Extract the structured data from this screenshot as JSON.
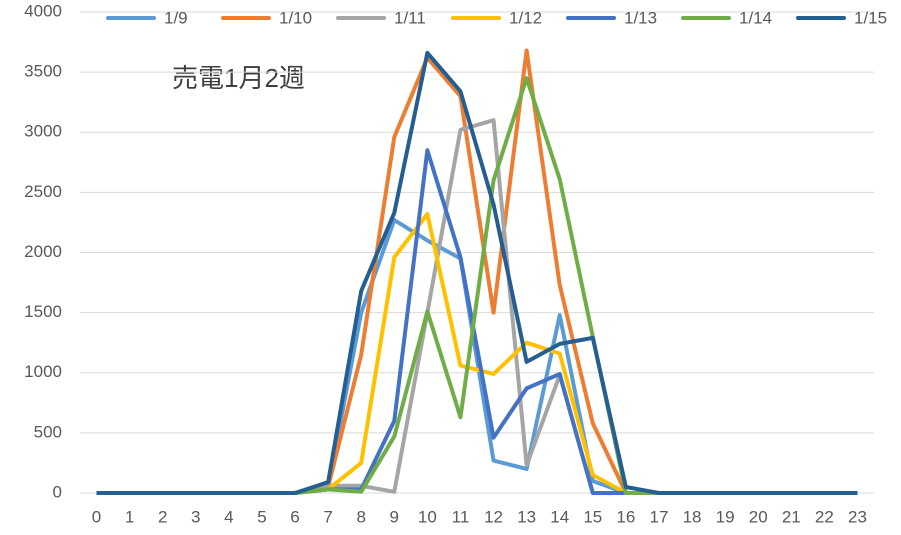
{
  "chart_data": {
    "type": "line",
    "annotation": "売電1月2週",
    "categories": [
      "0",
      "1",
      "2",
      "3",
      "4",
      "5",
      "6",
      "7",
      "8",
      "9",
      "10",
      "11",
      "12",
      "13",
      "14",
      "15",
      "16",
      "17",
      "18",
      "19",
      "20",
      "21",
      "22",
      "23"
    ],
    "series": [
      {
        "name": "1/9",
        "color": "#5b9bd5",
        "values": [
          0,
          0,
          0,
          0,
          0,
          0,
          0,
          50,
          1500,
          2270,
          2100,
          1950,
          270,
          200,
          1480,
          100,
          0,
          0,
          0,
          0,
          0,
          0,
          0,
          0
        ]
      },
      {
        "name": "1/10",
        "color": "#ed7d31",
        "values": [
          0,
          0,
          0,
          0,
          0,
          0,
          0,
          50,
          1150,
          2960,
          3620,
          3300,
          1500,
          3680,
          1730,
          580,
          0,
          0,
          0,
          0,
          0,
          0,
          0,
          0
        ]
      },
      {
        "name": "1/11",
        "color": "#a5a5a5",
        "values": [
          0,
          0,
          0,
          0,
          0,
          0,
          0,
          60,
          60,
          10,
          1500,
          3020,
          3100,
          230,
          980,
          0,
          0,
          0,
          0,
          0,
          0,
          0,
          0,
          0
        ]
      },
      {
        "name": "1/12",
        "color": "#ffc000",
        "values": [
          0,
          0,
          0,
          0,
          0,
          0,
          0,
          30,
          250,
          1960,
          2320,
          1060,
          990,
          1250,
          1160,
          150,
          0,
          0,
          0,
          0,
          0,
          0,
          0,
          0
        ]
      },
      {
        "name": "1/13",
        "color": "#4472c4",
        "values": [
          0,
          0,
          0,
          0,
          0,
          0,
          0,
          30,
          30,
          600,
          2850,
          1960,
          460,
          870,
          990,
          0,
          0,
          0,
          0,
          0,
          0,
          0,
          0,
          0
        ]
      },
      {
        "name": "1/14",
        "color": "#70ad47",
        "values": [
          0,
          0,
          0,
          0,
          0,
          0,
          0,
          30,
          10,
          470,
          1510,
          630,
          2600,
          3450,
          2610,
          1300,
          0,
          0,
          0,
          0,
          0,
          0,
          0,
          0
        ]
      },
      {
        "name": "1/15",
        "color": "#255e91",
        "values": [
          0,
          0,
          0,
          0,
          0,
          0,
          0,
          90,
          1680,
          2330,
          3660,
          3340,
          2400,
          1090,
          1240,
          1290,
          50,
          0,
          0,
          0,
          0,
          0,
          0,
          0
        ]
      }
    ],
    "ylim": [
      0,
      4000
    ],
    "yticks": [
      0,
      500,
      1000,
      1500,
      2000,
      2500,
      3000,
      3500,
      4000
    ],
    "grid": true,
    "legend": "top"
  }
}
